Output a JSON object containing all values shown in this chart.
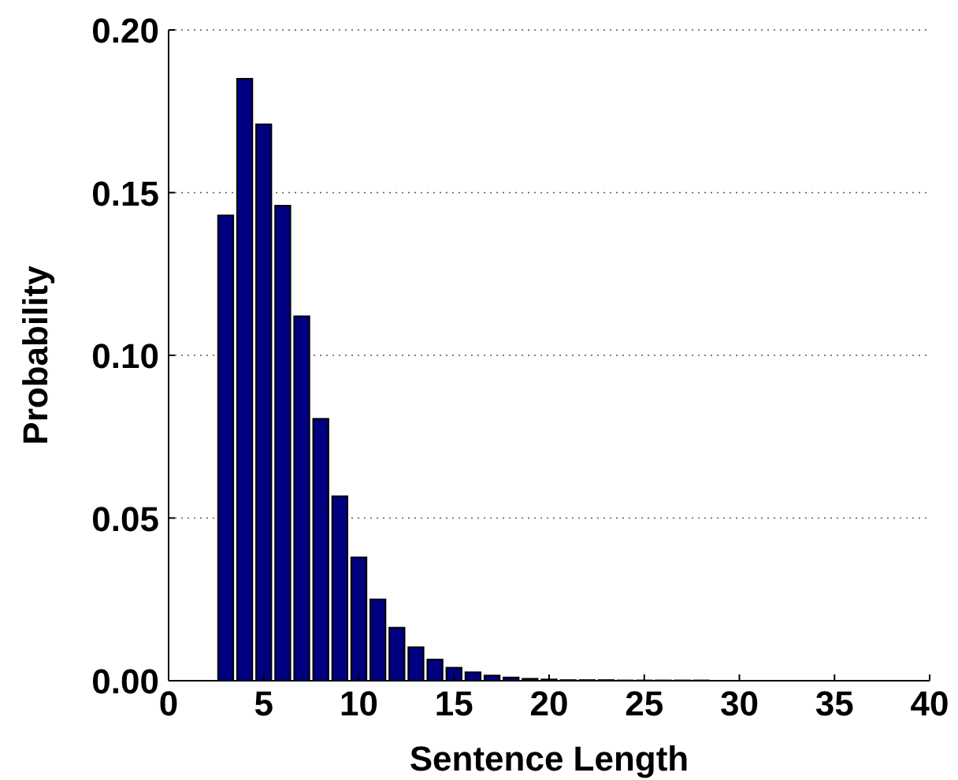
{
  "chart_data": {
    "type": "bar",
    "xlabel": "Sentence Length",
    "ylabel": "Probability",
    "x": [
      1,
      2,
      3,
      4,
      5,
      6,
      7,
      8,
      9,
      10,
      11,
      12,
      13,
      14,
      15,
      16,
      17,
      18,
      19,
      20,
      21,
      22,
      23,
      24,
      25,
      26,
      27,
      28,
      29,
      30,
      31,
      32,
      33,
      34,
      35,
      36,
      37,
      38,
      39,
      40
    ],
    "series": [
      {
        "color": "#000080",
        "values": [
          0,
          0,
          0.143,
          0.185,
          0.171,
          0.146,
          0.112,
          0.0805,
          0.0567,
          0.0379,
          0.025,
          0.0163,
          0.0103,
          0.0065,
          0.004,
          0.0026,
          0.0016,
          0.001,
          0.0006,
          0.0004,
          0.0002,
          0.0002,
          0.0002,
          0.0001,
          0.0001,
          0.0001,
          0.0001,
          0.0001,
          0,
          0,
          0,
          0,
          0,
          0,
          0,
          0,
          0,
          0,
          0,
          0
        ]
      }
    ],
    "xlim": [
      0,
      40
    ],
    "xticks": [
      0,
      5,
      10,
      15,
      20,
      25,
      30,
      35,
      40
    ],
    "ylim": [
      0,
      0.2
    ],
    "yticks": [
      {
        "value": 0,
        "label": "0.00"
      },
      {
        "value": 0.05,
        "label": "0.05"
      },
      {
        "value": 0.1,
        "label": "0.10"
      },
      {
        "value": 0.15,
        "label": "0.15"
      },
      {
        "value": 0.2,
        "label": "0.20"
      }
    ],
    "grid": "y"
  }
}
